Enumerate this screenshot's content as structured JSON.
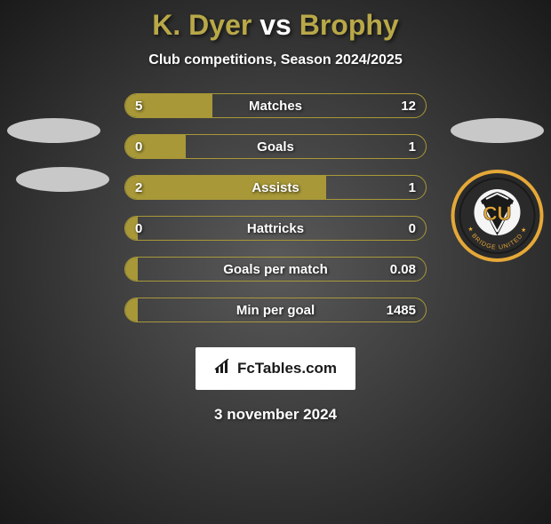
{
  "title": {
    "player1": "K. Dyer",
    "vs": "vs",
    "player2": "Brophy",
    "player1_color": "#b8a848",
    "vs_color": "#ffffff",
    "player2_color": "#b8a848",
    "fontsize": 32
  },
  "subtitle": "Club competitions, Season 2024/2025",
  "stats": {
    "bar_border_color": "#a89838",
    "bar_fill_color": "#a89838",
    "text_color": "#ffffff",
    "rows": [
      {
        "label": "Matches",
        "left": "5",
        "right": "12",
        "fill_pct": 29
      },
      {
        "label": "Goals",
        "left": "0",
        "right": "1",
        "fill_pct": 20
      },
      {
        "label": "Assists",
        "left": "2",
        "right": "1",
        "fill_pct": 67
      },
      {
        "label": "Hattricks",
        "left": "0",
        "right": "0",
        "fill_pct": 4
      },
      {
        "label": "Goals per match",
        "left": "",
        "right": "0.08",
        "fill_pct": 4
      },
      {
        "label": "Min per goal",
        "left": "",
        "right": "1485",
        "fill_pct": 4
      }
    ]
  },
  "badge": {
    "initials": "CU",
    "ring_text": "BRIDGE UNITED",
    "bg_color": "#2a2a2a",
    "ring_color": "#e5a838",
    "ball_stripes": "#ffffff"
  },
  "logo": {
    "text": "FcTables.com"
  },
  "date": "3 november 2024",
  "colors": {
    "ellipse": "#c8c8c8",
    "accent": "#a89838"
  }
}
